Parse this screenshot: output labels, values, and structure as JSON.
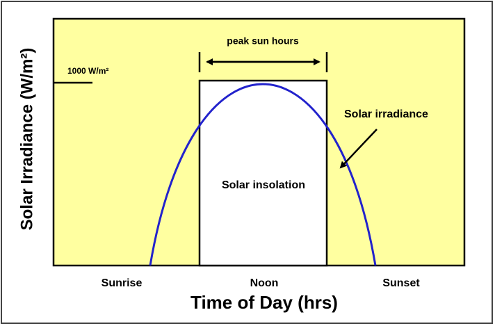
{
  "diagram": {
    "y_axis_title": "Solar Irradiance (W/m²)",
    "x_axis_title": "Time of Day (hrs)",
    "x_labels": [
      "Sunrise",
      "Noon",
      "Sunset"
    ],
    "level_label": "1000 W/m²",
    "peak_label": "peak sun hours",
    "curve_label": "Solar irradiance",
    "area_label": "Solar insolation"
  }
}
